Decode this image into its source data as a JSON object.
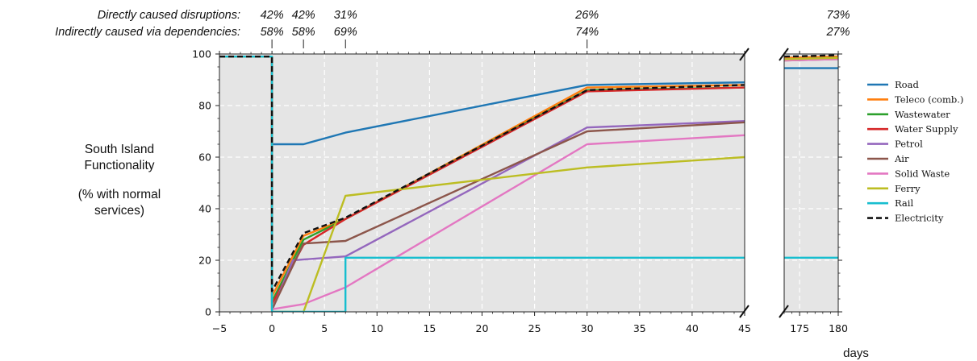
{
  "annotations": {
    "direct_label": "Directly caused disruptions:",
    "indirect_label": "Indirectly caused via dependencies:",
    "values": [
      {
        "day": 0,
        "direct": "42%",
        "indirect": "58%"
      },
      {
        "day": 3,
        "direct": "42%",
        "indirect": "58%"
      },
      {
        "day": 7,
        "direct": "31%",
        "indirect": "69%"
      },
      {
        "day": 30,
        "direct": "26%",
        "indirect": "74%"
      },
      {
        "day": 180,
        "direct": "73%",
        "indirect": "27%"
      }
    ]
  },
  "ylabel": {
    "line1": "South Island",
    "line2": "Functionality",
    "line3": "(% with normal",
    "line4": "services)"
  },
  "xlabel": "days",
  "chart_data": {
    "type": "line",
    "xlabel": "days",
    "ylabel": "South Island Functionality (% with normal services)",
    "ylim": [
      0,
      100
    ],
    "broken_x_axis": true,
    "x_segments": [
      [
        -5,
        45
      ],
      [
        173,
        180
      ]
    ],
    "x_ticks_left": [
      -5,
      0,
      5,
      10,
      15,
      20,
      25,
      30,
      35,
      40,
      45
    ],
    "x_ticks_right": [
      175,
      180
    ],
    "y_ticks": [
      0,
      20,
      40,
      60,
      80,
      100
    ],
    "grid": true,
    "legend_position": "right",
    "series": [
      {
        "name": "Road",
        "color": "#1f77b4",
        "dash": false,
        "points": [
          [
            -5,
            99
          ],
          [
            0,
            99
          ],
          [
            0,
            65
          ],
          [
            3,
            65
          ],
          [
            7,
            69.5
          ],
          [
            30,
            88
          ],
          [
            45,
            89
          ],
          [
            173,
            94.5
          ],
          [
            180,
            94.5
          ]
        ]
      },
      {
        "name": "Teleco (comb.)",
        "color": "#ff7f0e",
        "dash": false,
        "points": [
          [
            -5,
            99
          ],
          [
            0,
            99
          ],
          [
            0,
            6
          ],
          [
            3,
            29.5
          ],
          [
            7,
            36
          ],
          [
            30,
            87
          ],
          [
            45,
            88
          ],
          [
            173,
            98.5
          ],
          [
            180,
            99
          ]
        ]
      },
      {
        "name": "Wastewater",
        "color": "#2ca02c",
        "dash": false,
        "points": [
          [
            -5,
            99
          ],
          [
            0,
            99
          ],
          [
            0,
            4
          ],
          [
            3,
            28
          ],
          [
            7,
            36
          ],
          [
            30,
            86
          ],
          [
            45,
            87
          ],
          [
            173,
            98
          ],
          [
            180,
            98.5
          ]
        ]
      },
      {
        "name": "Water Supply",
        "color": "#d62728",
        "dash": false,
        "points": [
          [
            -5,
            99
          ],
          [
            0,
            99
          ],
          [
            0,
            3
          ],
          [
            3,
            26
          ],
          [
            7,
            36
          ],
          [
            30,
            85.5
          ],
          [
            45,
            87
          ],
          [
            173,
            98
          ],
          [
            180,
            98.5
          ]
        ]
      },
      {
        "name": "Petrol",
        "color": "#9467bd",
        "dash": false,
        "points": [
          [
            -5,
            99
          ],
          [
            0,
            99
          ],
          [
            0,
            0.5
          ],
          [
            2,
            20
          ],
          [
            7,
            21.5
          ],
          [
            30,
            71.5
          ],
          [
            45,
            74
          ],
          [
            173,
            98
          ],
          [
            180,
            98.5
          ]
        ]
      },
      {
        "name": "Air",
        "color": "#8c564b",
        "dash": false,
        "points": [
          [
            -5,
            99
          ],
          [
            0,
            99
          ],
          [
            0,
            1
          ],
          [
            3,
            26.5
          ],
          [
            7,
            27.5
          ],
          [
            30,
            70
          ],
          [
            45,
            73.5
          ],
          [
            173,
            97.5
          ],
          [
            180,
            98
          ]
        ]
      },
      {
        "name": "Solid Waste",
        "color": "#e377c2",
        "dash": false,
        "points": [
          [
            -5,
            99
          ],
          [
            0,
            99
          ],
          [
            0,
            1
          ],
          [
            3,
            3
          ],
          [
            7,
            9.5
          ],
          [
            30,
            65
          ],
          [
            45,
            68.5
          ],
          [
            173,
            97.5
          ],
          [
            180,
            98
          ]
        ]
      },
      {
        "name": "Ferry",
        "color": "#bcbd22",
        "dash": false,
        "points": [
          [
            -5,
            99
          ],
          [
            0,
            99
          ],
          [
            0,
            0
          ],
          [
            3,
            0
          ],
          [
            7,
            45
          ],
          [
            30,
            56
          ],
          [
            45,
            60
          ],
          [
            173,
            98
          ],
          [
            180,
            98.5
          ]
        ]
      },
      {
        "name": "Rail",
        "color": "#17becf",
        "dash": false,
        "points": [
          [
            -5,
            99
          ],
          [
            0,
            99
          ],
          [
            0,
            0
          ],
          [
            7,
            0
          ],
          [
            7,
            21
          ],
          [
            45,
            21
          ],
          [
            173,
            21
          ],
          [
            180,
            21
          ]
        ]
      },
      {
        "name": "Electricity",
        "color": "#111111",
        "dash": true,
        "points": [
          [
            -5,
            99
          ],
          [
            0,
            99
          ],
          [
            0,
            8
          ],
          [
            3,
            30.5
          ],
          [
            7,
            36.5
          ],
          [
            30,
            86
          ],
          [
            45,
            88
          ],
          [
            173,
            99
          ],
          [
            180,
            99.5
          ]
        ]
      }
    ]
  }
}
